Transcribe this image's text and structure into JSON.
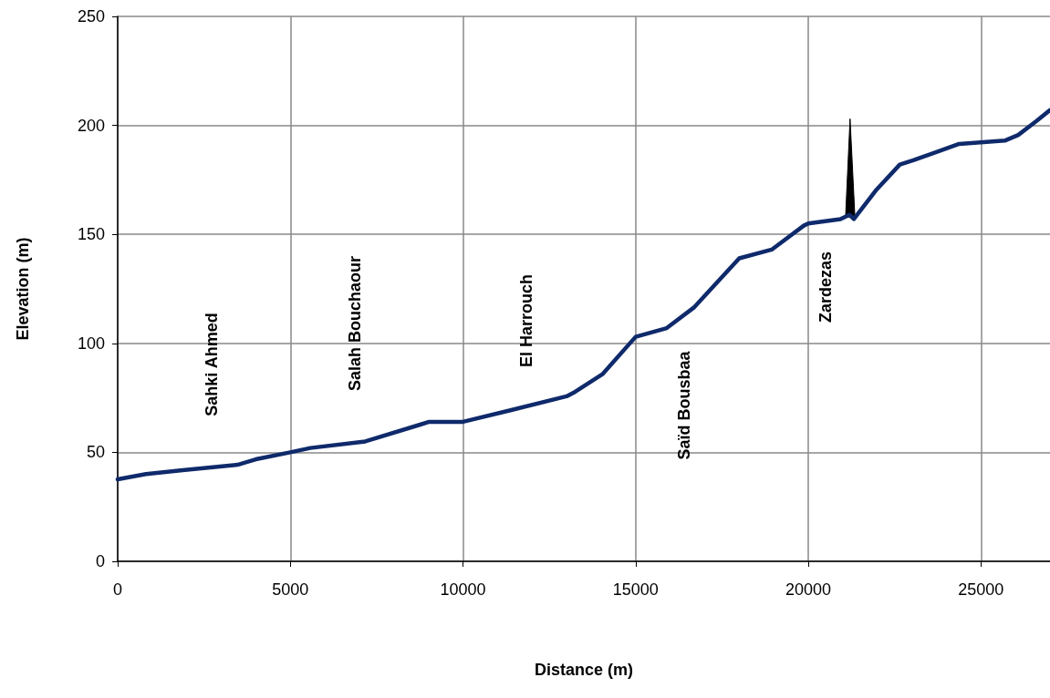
{
  "chart_data": {
    "type": "line",
    "xlabel": "Distance (m)",
    "ylabel": "Elevation (m)",
    "xlim": [
      0,
      27000
    ],
    "xticks": [
      0,
      5000,
      10000,
      15000,
      20000,
      25000
    ],
    "ylim": [
      0,
      250
    ],
    "yticks": [
      0,
      50,
      100,
      150,
      200,
      250
    ],
    "grid": true,
    "marker": "none",
    "line_style": "solid",
    "series": [
      {
        "color": "#0f2a6b",
        "x": [
          0,
          820,
          1880,
          3470,
          4000,
          5000,
          5580,
          7170,
          8760,
          9020,
          10000,
          11400,
          13000,
          13250,
          14050,
          15000,
          15900,
          16700,
          18000,
          18940,
          19870,
          20000,
          20930,
          21190,
          21320,
          21980,
          22650,
          23040,
          24370,
          25690,
          26080,
          26610,
          27000
        ],
        "values": [
          37.6,
          40,
          41.8,
          44.3,
          46.8,
          50,
          52,
          55,
          62.7,
          64,
          64,
          69.4,
          75.7,
          77.8,
          86,
          103,
          107,
          116.6,
          139,
          143,
          154,
          155,
          157,
          159,
          157,
          170.6,
          182,
          184,
          191.5,
          193,
          195.6,
          202,
          207
        ]
      },
      {
        "type": "area",
        "color": "#000000",
        "x": [
          21080,
          21210,
          21350
        ],
        "values": [
          158,
          203,
          158
        ]
      }
    ],
    "annotations": [
      "Sahki Ahmed",
      "Salah Bouchaour",
      "El Harrouch",
      "Saïd Bousbaa",
      "Zardezas"
    ]
  }
}
